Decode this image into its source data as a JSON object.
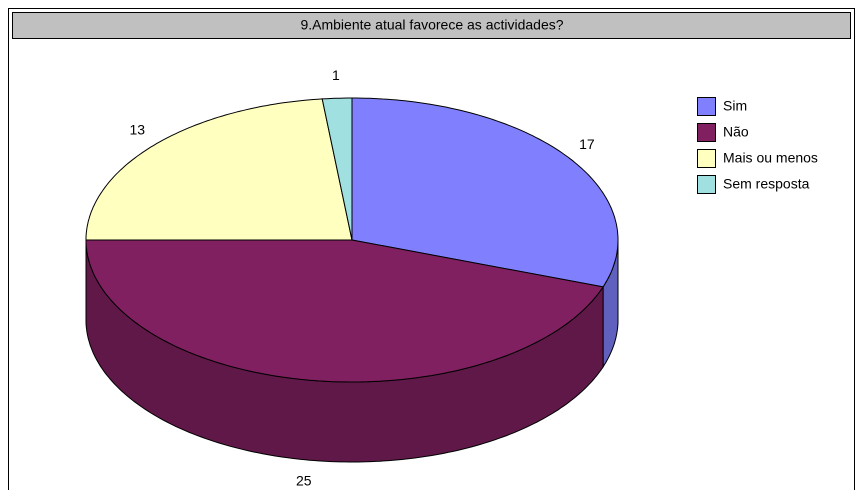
{
  "chart_data": {
    "type": "pie3d",
    "title": "9.Ambiente atual favorece as actividades?",
    "categories": [
      "Sim",
      "Não",
      "Mais ou menos",
      "Sem resposta"
    ],
    "values": [
      17,
      25,
      13,
      1
    ],
    "colors": [
      "#8080ff",
      "#802060",
      "#ffffc0",
      "#a0e0e0"
    ]
  }
}
